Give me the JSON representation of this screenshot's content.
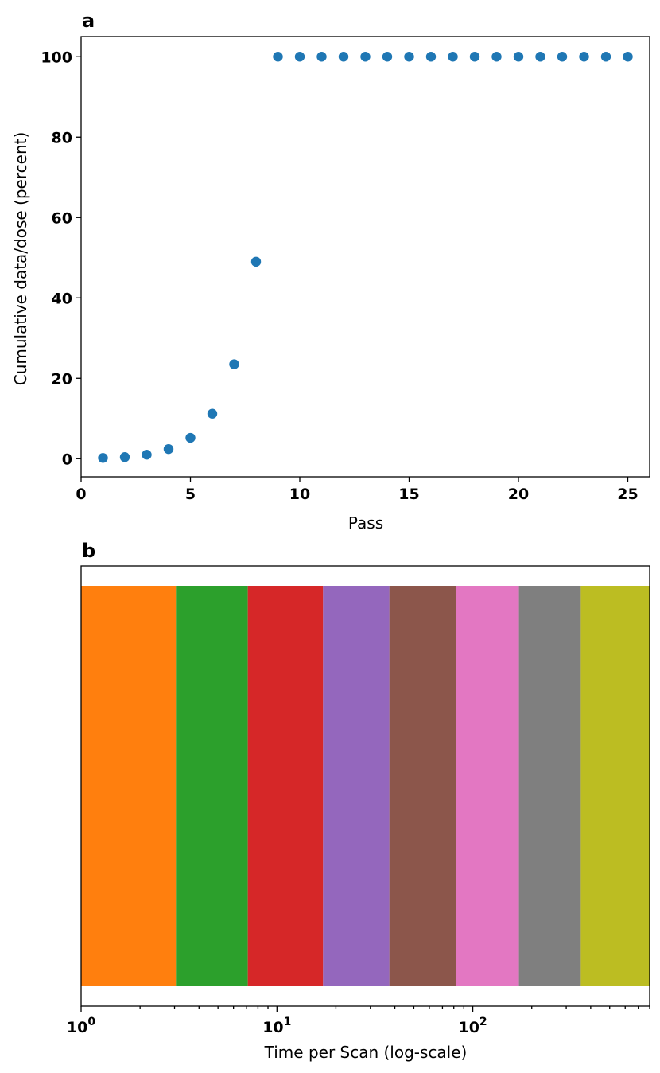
{
  "chart_data": [
    {
      "panel": "a",
      "type": "scatter",
      "xlabel": "Pass",
      "ylabel": "Cumulative data/dose (percent)",
      "xlim": [
        0,
        26
      ],
      "ylim": [
        -4.5,
        105
      ],
      "xticks": [
        0,
        5,
        10,
        15,
        20,
        25
      ],
      "yticks": [
        0,
        20,
        40,
        60,
        80,
        100
      ],
      "color": "#1f77b4",
      "x": [
        1,
        2,
        3,
        4,
        5,
        6,
        7,
        8,
        9,
        10,
        11,
        12,
        13,
        14,
        15,
        16,
        17,
        18,
        19,
        20,
        21,
        22,
        23,
        24,
        25
      ],
      "y": [
        0.2,
        0.4,
        1.0,
        2.4,
        5.2,
        11.2,
        23.5,
        49.0,
        100,
        100,
        100,
        100,
        100,
        100,
        100,
        100,
        100,
        100,
        100,
        100,
        100,
        100,
        100,
        100,
        100
      ]
    },
    {
      "panel": "b",
      "type": "bar",
      "orientation": "horizontal-segments",
      "xlabel": "Time per Scan (log-scale)",
      "xscale": "log",
      "xlim": [
        1,
        800
      ],
      "xticks": [
        1,
        10,
        100
      ],
      "xtick_labels": [
        {
          "base": "10",
          "exp": "0"
        },
        {
          "base": "10",
          "exp": "1"
        },
        {
          "base": "10",
          "exp": "2"
        }
      ],
      "segments": [
        {
          "start": 1,
          "end": 3.05,
          "color": "#ff7f0e"
        },
        {
          "start": 3.05,
          "end": 7.1,
          "color": "#2ca02c"
        },
        {
          "start": 7.1,
          "end": 17.2,
          "color": "#d62728"
        },
        {
          "start": 17.2,
          "end": 37.5,
          "color": "#9467bd"
        },
        {
          "start": 37.5,
          "end": 82,
          "color": "#8c564b"
        },
        {
          "start": 82,
          "end": 172,
          "color": "#e377c2"
        },
        {
          "start": 172,
          "end": 356,
          "color": "#7f7f7f"
        },
        {
          "start": 356,
          "end": 800,
          "color": "#bcbd22"
        }
      ]
    }
  ],
  "labels": {
    "panel_a": "a",
    "panel_b": "b"
  }
}
